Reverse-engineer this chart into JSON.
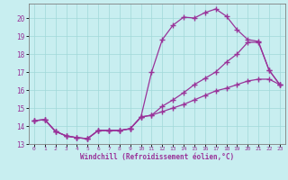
{
  "xlabel": "Windchill (Refroidissement éolien,°C)",
  "bg_color": "#c8eef0",
  "line_color": "#993399",
  "grid_color": "#a0d8d8",
  "spine_color": "#808080",
  "xlim": [
    -0.5,
    23.5
  ],
  "ylim": [
    13,
    20.8
  ],
  "yticks": [
    13,
    14,
    15,
    16,
    17,
    18,
    19,
    20
  ],
  "xticks": [
    0,
    1,
    2,
    3,
    4,
    5,
    6,
    7,
    8,
    9,
    10,
    11,
    12,
    13,
    14,
    15,
    16,
    17,
    18,
    19,
    20,
    21,
    22,
    23
  ],
  "line1_x": [
    0,
    1,
    2,
    3,
    4,
    5,
    6,
    7,
    8,
    9,
    10,
    11,
    12,
    13,
    14,
    15,
    16,
    17,
    18,
    19,
    20,
    21,
    22,
    23
  ],
  "line1_y": [
    14.3,
    14.35,
    13.7,
    13.45,
    13.35,
    13.3,
    13.75,
    13.75,
    13.75,
    13.85,
    14.5,
    17.0,
    18.8,
    19.6,
    20.05,
    20.0,
    20.3,
    20.5,
    20.1,
    19.35,
    18.8,
    18.7,
    17.1,
    16.3
  ],
  "line2_x": [
    0,
    1,
    2,
    3,
    4,
    5,
    6,
    7,
    8,
    9,
    10,
    11,
    12,
    13,
    14,
    15,
    16,
    17,
    18,
    19,
    20,
    21,
    22,
    23
  ],
  "line2_y": [
    14.3,
    14.35,
    13.7,
    13.45,
    13.35,
    13.3,
    13.75,
    13.75,
    13.75,
    13.85,
    14.5,
    14.6,
    15.1,
    15.45,
    15.85,
    16.3,
    16.65,
    17.0,
    17.55,
    18.0,
    18.65,
    18.65,
    17.1,
    16.3
  ],
  "line3_x": [
    0,
    1,
    2,
    3,
    4,
    5,
    6,
    7,
    8,
    9,
    10,
    11,
    12,
    13,
    14,
    15,
    16,
    17,
    18,
    19,
    20,
    21,
    22,
    23
  ],
  "line3_y": [
    14.3,
    14.35,
    13.7,
    13.45,
    13.35,
    13.3,
    13.75,
    13.75,
    13.75,
    13.85,
    14.5,
    14.6,
    14.8,
    15.0,
    15.2,
    15.45,
    15.7,
    15.95,
    16.1,
    16.3,
    16.5,
    16.6,
    16.6,
    16.3
  ]
}
